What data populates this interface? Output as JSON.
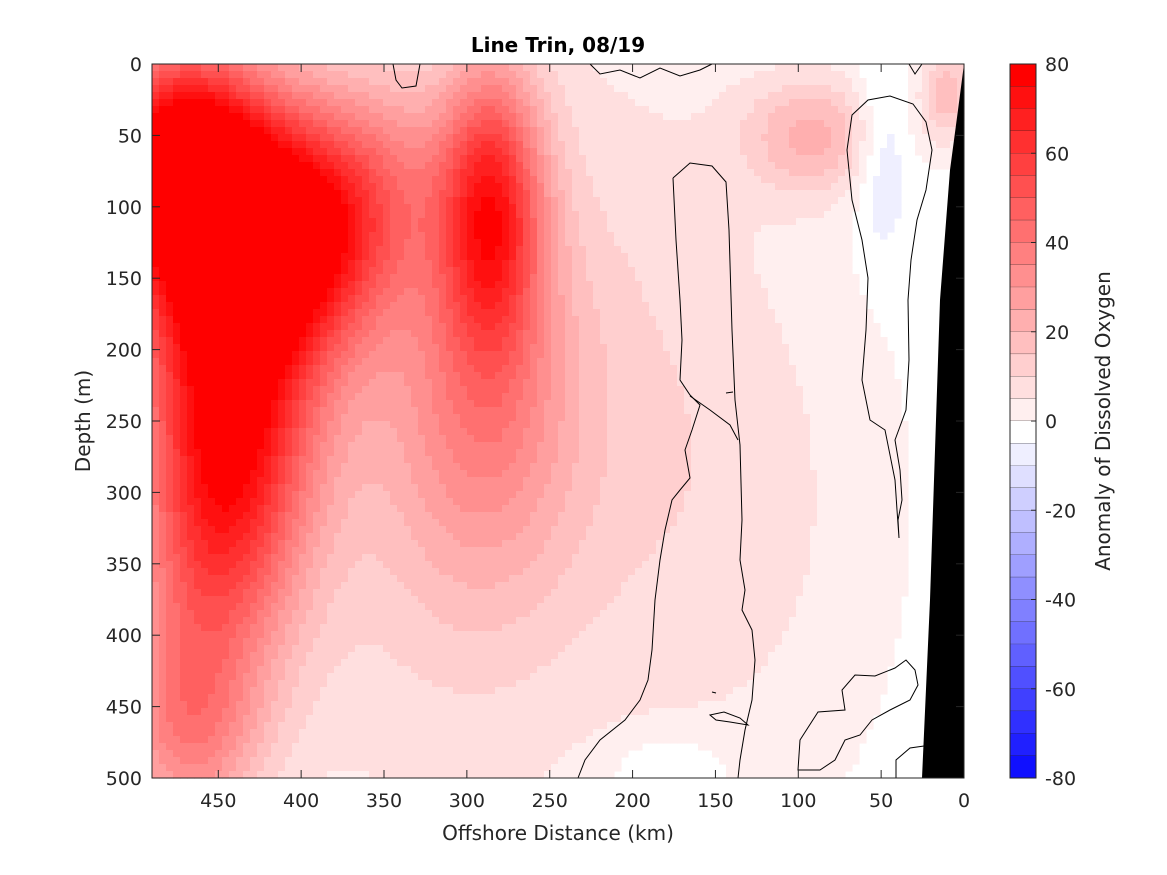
{
  "chart_data": {
    "type": "heatmap",
    "title": "Line Trin, 08/19",
    "xlabel": "Offshore Distance (km)",
    "ylabel": "Depth (m)",
    "colorbar_label": "Anomaly of Dissolved Oxygen",
    "x_range": [
      490,
      0
    ],
    "y_range": [
      0,
      500
    ],
    "x_ticks": [
      450,
      400,
      350,
      300,
      250,
      200,
      150,
      100,
      50,
      0
    ],
    "y_ticks": [
      0,
      50,
      100,
      150,
      200,
      250,
      300,
      350,
      400,
      450,
      500
    ],
    "colorbar_range": [
      -80,
      80
    ],
    "colorbar_ticks": [
      80,
      60,
      40,
      20,
      0,
      -20,
      -40,
      -60,
      -80
    ],
    "colorbar_step": 5,
    "colors": {
      "positive": "#ff0000",
      "negative": "#0000ff",
      "zero": "#ffffff",
      "land": "#000000"
    },
    "features": [
      {
        "type": "positive",
        "x": 475,
        "y": 65,
        "value": 65,
        "sx": 35,
        "sy": 55
      },
      {
        "type": "positive",
        "x": 440,
        "y": 120,
        "value": 58,
        "sx": 55,
        "sy": 80
      },
      {
        "type": "positive",
        "x": 400,
        "y": 120,
        "value": 40,
        "sx": 40,
        "sy": 50
      },
      {
        "type": "positive",
        "x": 440,
        "y": 250,
        "value": 55,
        "sx": 35,
        "sy": 90
      },
      {
        "type": "positive",
        "x": 460,
        "y": 350,
        "value": 32,
        "sx": 35,
        "sy": 90
      },
      {
        "type": "positive",
        "x": 470,
        "y": 470,
        "value": 28,
        "sx": 30,
        "sy": 50
      },
      {
        "type": "positive",
        "x": 285,
        "y": 100,
        "value": 58,
        "sx": 22,
        "sy": 70
      },
      {
        "type": "positive",
        "x": 290,
        "y": 240,
        "value": 26,
        "sx": 40,
        "sy": 90
      },
      {
        "type": "positive",
        "x": 330,
        "y": 300,
        "value": 12,
        "sx": 80,
        "sy": 200
      },
      {
        "type": "positive",
        "x": 350,
        "y": 70,
        "value": 15,
        "sx": 35,
        "sy": 50
      },
      {
        "type": "positive",
        "x": 200,
        "y": 200,
        "value": 8,
        "sx": 70,
        "sy": 220
      },
      {
        "type": "positive",
        "x": 120,
        "y": 320,
        "value": 6,
        "sx": 60,
        "sy": 140
      },
      {
        "type": "positive",
        "x": 90,
        "y": 50,
        "value": 22,
        "sx": 30,
        "sy": 30
      },
      {
        "type": "positive",
        "x": 10,
        "y": 20,
        "value": 20,
        "sx": 12,
        "sy": 25
      },
      {
        "type": "negative",
        "x": 50,
        "y": 60,
        "value": -12,
        "sx": 12,
        "sy": 45
      },
      {
        "type": "negative",
        "x": 180,
        "y": 495,
        "value": -8,
        "sx": 25,
        "sy": 18
      }
    ]
  }
}
